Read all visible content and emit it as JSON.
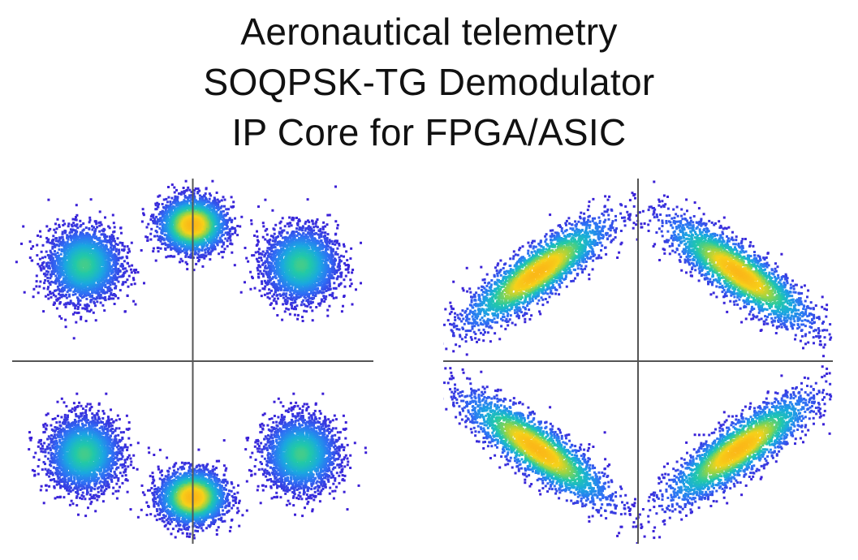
{
  "title": {
    "line1": "Aeronautical telemetry",
    "line2": "SOQPSK-TG Demodulator",
    "line3": "IP Core for FPGA/ASIC"
  },
  "colors": {
    "axis": "#555555",
    "background": "#ffffff",
    "colormap": [
      "#3b1fd6",
      "#2f6ff5",
      "#1aa8e0",
      "#22c9a8",
      "#8fd44a",
      "#f6d21a",
      "#fbb818"
    ]
  },
  "chart_data": [
    {
      "type": "scatter",
      "title": "",
      "xlabel": "",
      "ylabel": "",
      "grid": false,
      "xlim": [
        -1.1,
        1.1
      ],
      "ylim": [
        -1.1,
        1.1
      ],
      "clusters": [
        {
          "x": -0.66,
          "y": 0.58,
          "sx": 0.11,
          "sy": 0.11,
          "rho": 0.0,
          "peak": 0.55
        },
        {
          "x": 0.0,
          "y": 0.82,
          "sx": 0.1,
          "sy": 0.08,
          "rho": 0.0,
          "peak": 1.0
        },
        {
          "x": 0.66,
          "y": 0.58,
          "sx": 0.11,
          "sy": 0.11,
          "rho": 0.0,
          "peak": 0.55
        },
        {
          "x": -0.66,
          "y": -0.56,
          "sx": 0.11,
          "sy": 0.11,
          "rho": 0.0,
          "peak": 0.55
        },
        {
          "x": 0.0,
          "y": -0.82,
          "sx": 0.1,
          "sy": 0.08,
          "rho": 0.0,
          "peak": 1.0
        },
        {
          "x": 0.66,
          "y": -0.56,
          "sx": 0.11,
          "sy": 0.11,
          "rho": 0.0,
          "peak": 0.55
        }
      ]
    },
    {
      "type": "scatter",
      "title": "",
      "xlabel": "",
      "ylabel": "",
      "grid": false,
      "xlim": [
        -1.1,
        1.1
      ],
      "ylim": [
        -1.1,
        1.1
      ],
      "clusters": [
        {
          "x": -0.57,
          "y": 0.53,
          "sx": 0.2,
          "sy": 0.16,
          "rho": 0.85,
          "peak": 1.0
        },
        {
          "x": 0.57,
          "y": 0.53,
          "sx": 0.2,
          "sy": 0.16,
          "rho": -0.85,
          "peak": 1.0
        },
        {
          "x": -0.57,
          "y": -0.53,
          "sx": 0.2,
          "sy": 0.16,
          "rho": -0.85,
          "peak": 1.0
        },
        {
          "x": 0.57,
          "y": -0.53,
          "sx": 0.2,
          "sy": 0.16,
          "rho": 0.85,
          "peak": 1.0
        }
      ]
    }
  ]
}
